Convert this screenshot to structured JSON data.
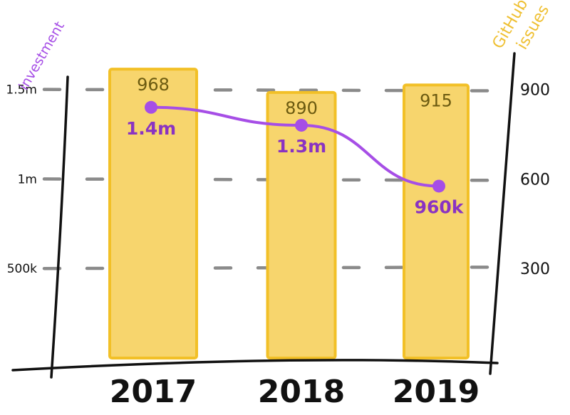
{
  "chart_data": {
    "type": "bar",
    "categories": [
      "2017",
      "2018",
      "2019"
    ],
    "series": [
      {
        "name": "GitHub issues",
        "type": "bar",
        "axis": "right",
        "values": [
          968,
          890,
          915
        ],
        "labels": [
          "968",
          "890",
          "915"
        ]
      },
      {
        "name": "investment",
        "type": "line",
        "axis": "left",
        "values": [
          1400000,
          1300000,
          960000
        ],
        "labels": [
          "1.4m",
          "1.3m",
          "960k"
        ]
      }
    ],
    "y_left": {
      "label": "investment",
      "ticks": [
        500000,
        1000000,
        1500000
      ],
      "tick_labels": [
        "500k",
        "1m",
        "1.5m"
      ],
      "range": [
        0,
        1900000
      ]
    },
    "y_right": {
      "label_lines": [
        "GitHub",
        "issues"
      ],
      "ticks": [
        300,
        600,
        900
      ],
      "tick_labels": [
        "300",
        "600",
        "900"
      ],
      "range": [
        0,
        1140
      ]
    },
    "grid": true,
    "colors": {
      "bar_fill": "#f7d56d",
      "bar_stroke": "#f2c027",
      "line": "#a64ee6",
      "grid": "#8a8a8a",
      "axis": "#111111"
    }
  }
}
